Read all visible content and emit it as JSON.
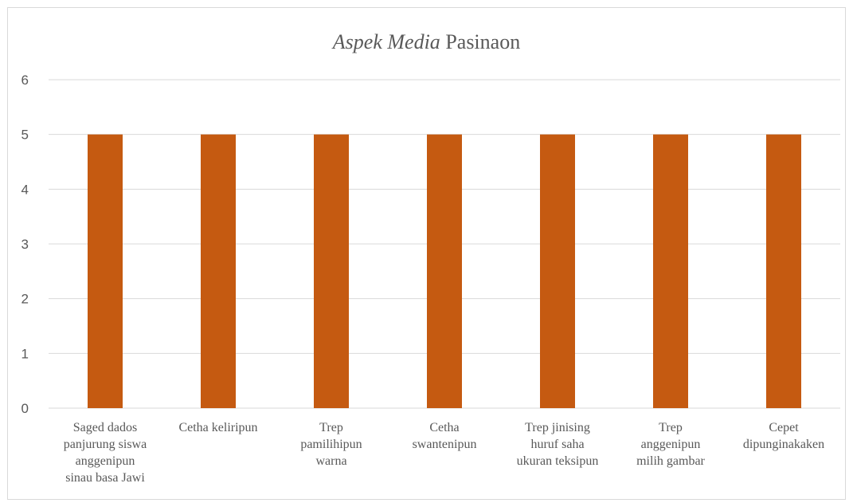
{
  "chart_data": {
    "type": "bar",
    "title_italic": "Aspek Media",
    "title_rest": " Pasinaon",
    "categories": [
      [
        "Saged dados",
        "panjurung siswa",
        "anggenipun",
        "sinau basa Jawi"
      ],
      [
        "Cetha keliripun"
      ],
      [
        "Trep",
        "pamilihipun",
        "warna"
      ],
      [
        "Cetha",
        "swantenipun"
      ],
      [
        "Trep jinising",
        "huruf saha",
        "ukuran teksipun"
      ],
      [
        "Trep",
        "anggenipun",
        "milih gambar"
      ],
      [
        "Cepet",
        "dipunginakaken"
      ]
    ],
    "values": [
      5,
      5,
      5,
      5,
      5,
      5,
      5
    ],
    "ylim": [
      0,
      6
    ],
    "yticks": [
      "0",
      "1",
      "2",
      "3",
      "4",
      "5",
      "6"
    ],
    "bar_color": "#c55a11",
    "grid_color": "#d9d9d9",
    "grid": true,
    "legend": "none"
  }
}
